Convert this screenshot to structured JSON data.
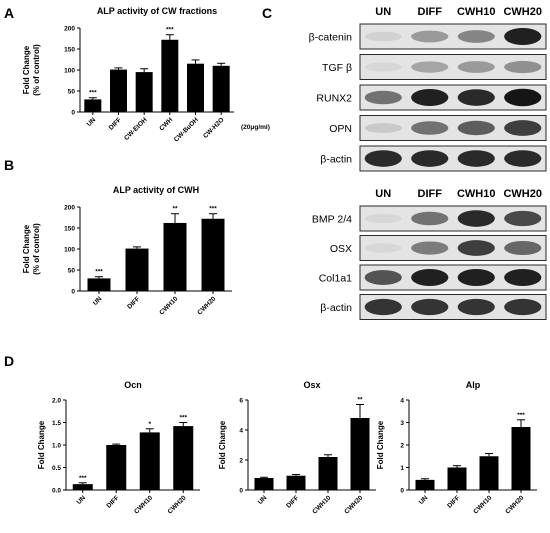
{
  "panels": {
    "A": "A",
    "B": "B",
    "C": "C",
    "D": "D"
  },
  "chart_data": [
    {
      "id": "A",
      "type": "bar",
      "title": "ALP activity of CW fractions",
      "ylabel_lines": [
        "Fold Change",
        "(% of control)"
      ],
      "categories": [
        "UN",
        "DIFF",
        "CW-EtOH",
        "CWH",
        "CW-BuOH",
        "CW-H2O"
      ],
      "values": [
        30,
        101,
        95,
        172,
        115,
        110
      ],
      "errors": [
        4,
        4,
        8,
        12,
        9,
        6
      ],
      "significance": [
        "***",
        "",
        "",
        "***",
        "",
        ""
      ],
      "yticks": [
        "0",
        "50",
        "100",
        "150",
        "200"
      ],
      "ylim": [
        0,
        200
      ],
      "note": "(20μg/ml)"
    },
    {
      "id": "B",
      "type": "bar",
      "title": "ALP activity of CWH",
      "ylabel_lines": [
        "Fold Change",
        "(% of control)"
      ],
      "categories": [
        "UN",
        "DIFF",
        "CWH10",
        "CWH20"
      ],
      "values": [
        30,
        101,
        162,
        172
      ],
      "errors": [
        4,
        4,
        22,
        12
      ],
      "significance": [
        "***",
        "",
        "**",
        "***"
      ],
      "yticks": [
        "0",
        "50",
        "100",
        "150",
        "200"
      ],
      "ylim": [
        0,
        200
      ]
    },
    {
      "id": "Ocn",
      "type": "bar",
      "title": "Ocn",
      "ylabel_lines": [
        "Fold Change"
      ],
      "categories": [
        "UN",
        "DIFF",
        "CWH10",
        "CWH20"
      ],
      "values": [
        0.13,
        1.0,
        1.28,
        1.42
      ],
      "errors": [
        0.03,
        0.02,
        0.08,
        0.08
      ],
      "significance": [
        "***",
        "",
        "*",
        "***"
      ],
      "yticks": [
        "0.0",
        "0.5",
        "1.0",
        "1.5",
        "2.0"
      ],
      "ylim": [
        0,
        2.0
      ]
    },
    {
      "id": "Osx",
      "type": "bar",
      "title": "Osx",
      "ylabel_lines": [
        "Fold Change"
      ],
      "categories": [
        "UN",
        "DIFF",
        "CWH10",
        "CWH20"
      ],
      "values": [
        0.8,
        0.95,
        2.2,
        4.8
      ],
      "errors": [
        0.05,
        0.08,
        0.15,
        0.9
      ],
      "significance": [
        "",
        "",
        "",
        "**"
      ],
      "yticks": [
        "0",
        "2",
        "4",
        "6"
      ],
      "ylim": [
        0,
        6
      ]
    },
    {
      "id": "Alp",
      "type": "bar",
      "title": "Alp",
      "ylabel_lines": [
        "Fold Change"
      ],
      "categories": [
        "UN",
        "DIFF",
        "CWH10",
        "CWH20"
      ],
      "values": [
        0.45,
        1.0,
        1.5,
        2.8
      ],
      "errors": [
        0.05,
        0.08,
        0.12,
        0.32
      ],
      "significance": [
        "",
        "",
        "",
        "***"
      ],
      "yticks": [
        "0",
        "1",
        "2",
        "3",
        "4"
      ],
      "ylim": [
        0,
        4
      ]
    }
  ],
  "blot_top": {
    "columns": [
      "UN",
      "DIFF",
      "CWH10",
      "CWH20"
    ],
    "rows": [
      {
        "label": "β-catenin",
        "intensity": [
          0.08,
          0.35,
          0.45,
          0.95
        ]
      },
      {
        "label": "TGF β",
        "intensity": [
          0.05,
          0.3,
          0.35,
          0.4
        ]
      },
      {
        "label": "RUNX2",
        "intensity": [
          0.55,
          0.95,
          0.9,
          1.0
        ]
      },
      {
        "label": "OPN",
        "intensity": [
          0.12,
          0.55,
          0.65,
          0.8
        ]
      },
      {
        "label": "β-actin",
        "intensity": [
          0.9,
          0.9,
          0.9,
          0.9
        ]
      }
    ]
  },
  "blot_bottom": {
    "columns": [
      "UN",
      "DIFF",
      "CWH10",
      "CWH20"
    ],
    "rows": [
      {
        "label": "BMP 2/4",
        "intensity": [
          0.05,
          0.55,
          0.9,
          0.75
        ]
      },
      {
        "label": "OSX",
        "intensity": [
          0.05,
          0.5,
          0.8,
          0.6
        ]
      },
      {
        "label": "Col1a1",
        "intensity": [
          0.7,
          0.95,
          0.95,
          0.95
        ]
      },
      {
        "label": "β-actin",
        "intensity": [
          0.85,
          0.85,
          0.85,
          0.85
        ]
      }
    ]
  }
}
